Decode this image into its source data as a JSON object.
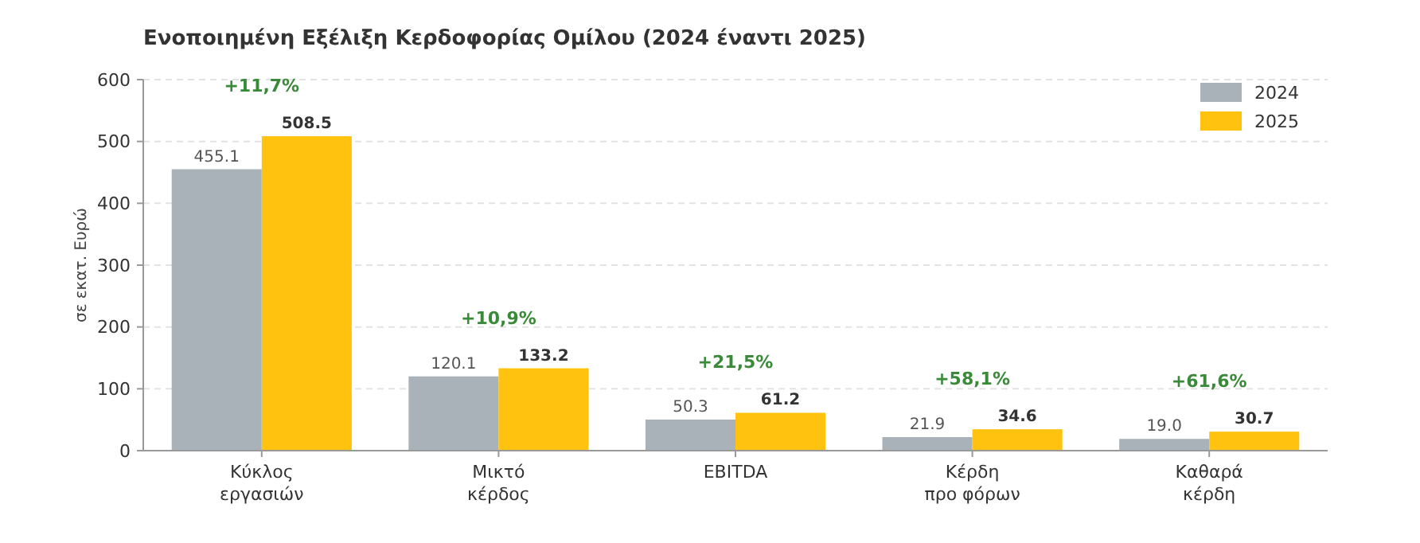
{
  "chart_data": {
    "type": "bar",
    "title": "Ενοποιημένη Εξέλιξη Κερδοφορίας Ομίλου  (2024 έναντι 2025)",
    "ylabel": "σε εκατ. Ευρώ",
    "categories": [
      "Κύκλος\nεργασιών",
      "Μικτό\nκέρδος",
      "EBITDA",
      "Κέρδη\nπρο φόρων",
      "Καθαρά\nκέρδη"
    ],
    "series": [
      {
        "name": "2024",
        "color": "#a9b2b8",
        "values": [
          455.1,
          120.1,
          50.3,
          21.9,
          19.0
        ],
        "value_labels": [
          "455.1",
          "120.1",
          "50.3",
          "21.9",
          "19.0"
        ]
      },
      {
        "name": "2025",
        "color": "#ffc20e",
        "values": [
          508.5,
          133.2,
          61.2,
          34.6,
          30.7
        ],
        "value_labels": [
          "508.5",
          "133.2",
          "61.2",
          "34.6",
          "30.7"
        ]
      }
    ],
    "ylim": [
      0,
      600
    ],
    "yticks": [
      0,
      100,
      200,
      300,
      400,
      500,
      600
    ],
    "grid": "y",
    "legend": "top right",
    "annotations": [
      "+11,7%",
      "+10,9%",
      "+21,5%",
      "+58,1%",
      "+61,6%"
    ]
  }
}
